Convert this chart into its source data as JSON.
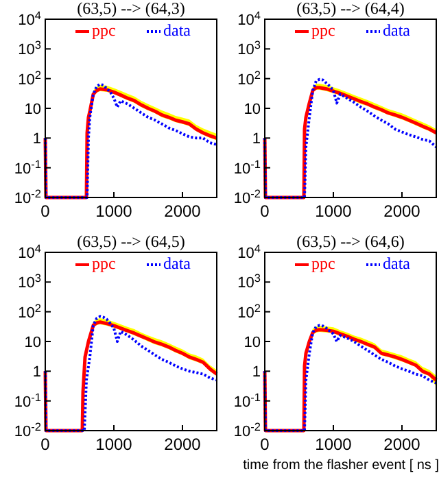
{
  "chart_data": [
    {
      "type": "line",
      "title": "(63,5) --> (64,3)",
      "log": "y",
      "grid": false,
      "legend": "top",
      "xlim": [
        0,
        2500
      ],
      "xticks": [
        0,
        1000,
        2000
      ],
      "ylim": [
        0.01,
        10000
      ],
      "yticks": [
        {
          "value": 0.01,
          "label": "10$^{-2}$"
        },
        {
          "value": 0.1,
          "label": "10$^{-1}$"
        },
        {
          "value": 1,
          "label": "1"
        },
        {
          "value": 10,
          "label": "10"
        },
        {
          "value": 100,
          "label": "10$^{2}$"
        },
        {
          "value": 1000,
          "label": "10$^{3}$"
        },
        {
          "value": 10000,
          "label": "10$^{4}$"
        }
      ],
      "series": [
        {
          "name": "ppc",
          "color": "#ff0000",
          "line_style": "solid",
          "x": [
            0,
            10,
            600,
            610,
            630,
            650,
            700,
            750,
            800,
            900,
            1000,
            1100,
            1200,
            1300,
            1400,
            1500,
            1600,
            1700,
            1800,
            1900,
            2000,
            2100,
            2200,
            2300,
            2400,
            2500
          ],
          "values": [
            1,
            0.01,
            0.01,
            1.5,
            5,
            8,
            30,
            40,
            45,
            42,
            35,
            28,
            22,
            18,
            13,
            10,
            8,
            6,
            5,
            4,
            3.5,
            3,
            2,
            1.5,
            1.2,
            1
          ],
          "lower": [
            null,
            null,
            null,
            1.2,
            4,
            7,
            25,
            34,
            38,
            36,
            30,
            24,
            19,
            15,
            11,
            8.5,
            6.8,
            5,
            4.2,
            3.4,
            3,
            2.5,
            1.7,
            1.3,
            1,
            0.85
          ],
          "upper": [
            null,
            null,
            null,
            2,
            6.5,
            11,
            40,
            55,
            62,
            58,
            48,
            39,
            31,
            25,
            18,
            14,
            11,
            8.5,
            7,
            5.6,
            4.9,
            4.2,
            2.8,
            2.1,
            1.7,
            1.4
          ]
        },
        {
          "name": "data",
          "color": "#0000ff",
          "line_style": "dotted",
          "x": [
            0,
            10,
            610,
            630,
            650,
            700,
            750,
            800,
            850,
            900,
            950,
            1000,
            1050,
            1100,
            1200,
            1300,
            1400,
            1500,
            1600,
            1700,
            1800,
            1900,
            2000,
            2100,
            2200,
            2300,
            2400,
            2500
          ],
          "values": [
            1,
            0.01,
            0.01,
            1,
            5,
            30,
            55,
            65,
            60,
            45,
            35,
            22,
            11,
            18,
            14,
            10,
            7,
            5,
            4,
            3,
            2.2,
            1.8,
            1.4,
            1.1,
            1,
            1,
            0.7,
            0.6
          ]
        }
      ]
    },
    {
      "type": "line",
      "title": "(63,5) --> (64,4)",
      "log": "y",
      "grid": false,
      "legend": "top",
      "xlim": [
        0,
        2500
      ],
      "xticks": [
        0,
        1000,
        2000
      ],
      "ylim": [
        0.01,
        10000
      ],
      "yticks": [
        {
          "value": 0.01,
          "label": "10$^{-2}$"
        },
        {
          "value": 0.1,
          "label": "10$^{-1}$"
        },
        {
          "value": 1,
          "label": "1"
        },
        {
          "value": 10,
          "label": "10"
        },
        {
          "value": 100,
          "label": "10$^{2}$"
        },
        {
          "value": 1000,
          "label": "10$^{3}$"
        },
        {
          "value": 10000,
          "label": "10$^{4}$"
        }
      ],
      "series": [
        {
          "name": "ppc",
          "color": "#ff0000",
          "line_style": "solid",
          "x": [
            0,
            10,
            570,
            580,
            600,
            650,
            700,
            750,
            800,
            900,
            1000,
            1100,
            1200,
            1300,
            1400,
            1500,
            1600,
            1700,
            1800,
            1900,
            2000,
            2100,
            2200,
            2300,
            2400,
            2500
          ],
          "values": [
            1,
            0.01,
            0.01,
            2,
            5,
            15,
            40,
            50,
            50,
            45,
            38,
            32,
            26,
            21,
            17,
            14,
            11,
            9,
            7,
            6,
            5,
            4,
            3.2,
            2.5,
            2,
            1.5
          ],
          "lower": [
            null,
            null,
            null,
            1.7,
            4.2,
            13,
            34,
            42,
            42,
            38,
            32,
            27,
            22,
            18,
            14,
            12,
            9.4,
            7.6,
            6,
            5.1,
            4.2,
            3.4,
            2.7,
            2.1,
            1.7,
            1.3
          ],
          "upper": [
            null,
            null,
            null,
            2.7,
            6.8,
            20,
            54,
            68,
            68,
            61,
            51,
            43,
            35,
            28,
            23,
            19,
            15,
            12,
            9.5,
            8.1,
            6.8,
            5.4,
            4.3,
            3.4,
            2.7,
            2
          ]
        },
        {
          "name": "data",
          "color": "#0000ff",
          "line_style": "dotted",
          "x": [
            0,
            10,
            580,
            600,
            650,
            700,
            750,
            800,
            850,
            900,
            950,
            1000,
            1050,
            1100,
            1200,
            1300,
            1400,
            1500,
            1600,
            1700,
            1800,
            1900,
            2000,
            2100,
            2200,
            2300,
            2400,
            2500
          ],
          "values": [
            1,
            0.01,
            0.01,
            0.5,
            5,
            40,
            85,
            95,
            90,
            70,
            55,
            40,
            15,
            30,
            22,
            16,
            11,
            8,
            5.5,
            4,
            3,
            2,
            1.6,
            1.3,
            1.1,
            0.9,
            0.8,
            0.5
          ]
        }
      ]
    },
    {
      "type": "line",
      "title": "(63,5) --> (64,5)",
      "log": "y",
      "grid": false,
      "legend": "top",
      "xlim": [
        0,
        2500
      ],
      "xticks": [
        0,
        1000,
        2000
      ],
      "ylim": [
        0.01,
        10000
      ],
      "yticks": [
        {
          "value": 0.01,
          "label": "10$^{-2}$"
        },
        {
          "value": 0.1,
          "label": "10$^{-1}$"
        },
        {
          "value": 1,
          "label": "1"
        },
        {
          "value": 10,
          "label": "10"
        },
        {
          "value": 100,
          "label": "10$^{2}$"
        },
        {
          "value": 1000,
          "label": "10$^{3}$"
        },
        {
          "value": 10000,
          "label": "10$^{4}$"
        }
      ],
      "series": [
        {
          "name": "ppc",
          "color": "#ff0000",
          "line_style": "solid",
          "x": [
            0,
            10,
            540,
            550,
            580,
            630,
            700,
            750,
            800,
            900,
            1000,
            1100,
            1200,
            1300,
            1400,
            1500,
            1600,
            1700,
            1800,
            1900,
            2000,
            2100,
            2200,
            2300,
            2400,
            2500
          ],
          "values": [
            1,
            0.01,
            0.01,
            0.2,
            3,
            10,
            35,
            42,
            45,
            40,
            34,
            28,
            23,
            19,
            15,
            12,
            9.5,
            8,
            6.5,
            5,
            4,
            3,
            2.5,
            2,
            1.2,
            0.8
          ],
          "lower": [
            null,
            null,
            null,
            0.17,
            2.5,
            8.5,
            30,
            36,
            38,
            34,
            29,
            24,
            20,
            16,
            13,
            10,
            8,
            6.8,
            5.5,
            4.2,
            3.4,
            2.5,
            2.1,
            1.7,
            1,
            0.68
          ],
          "upper": [
            null,
            null,
            null,
            0.27,
            4,
            13.5,
            47,
            57,
            61,
            54,
            46,
            38,
            31,
            26,
            20,
            16,
            13,
            11,
            8.8,
            6.8,
            5.4,
            4,
            3.4,
            2.7,
            1.6,
            1.1
          ]
        },
        {
          "name": "data",
          "color": "#0000ff",
          "line_style": "dotted",
          "x": [
            0,
            10,
            570,
            600,
            650,
            700,
            750,
            800,
            850,
            900,
            950,
            1000,
            1050,
            1100,
            1200,
            1300,
            1400,
            1500,
            1600,
            1700,
            1800,
            1900,
            2000,
            2100,
            2200,
            2300,
            2400,
            2500
          ],
          "values": [
            1,
            0.01,
            0.01,
            0.5,
            3,
            35,
            60,
            70,
            65,
            55,
            40,
            28,
            10,
            22,
            16,
            11,
            7,
            5,
            3.5,
            2.5,
            2,
            1.5,
            1.2,
            1,
            0.9,
            0.8,
            0.6,
            0.5
          ]
        }
      ]
    },
    {
      "type": "line",
      "title": "(63,5) --> (64,6)",
      "xlabel": "time from the flasher event [ ns ]",
      "log": "y",
      "grid": false,
      "legend": "top",
      "xlim": [
        0,
        2500
      ],
      "xticks": [
        0,
        1000,
        2000
      ],
      "ylim": [
        0.01,
        10000
      ],
      "yticks": [
        {
          "value": 0.01,
          "label": "10$^{-2}$"
        },
        {
          "value": 0.1,
          "label": "10$^{-1}$"
        },
        {
          "value": 1,
          "label": "1"
        },
        {
          "value": 10,
          "label": "10"
        },
        {
          "value": 100,
          "label": "10$^{2}$"
        },
        {
          "value": 1000,
          "label": "10$^{3}$"
        },
        {
          "value": 10000,
          "label": "10$^{4}$"
        }
      ],
      "series": [
        {
          "name": "ppc",
          "color": "#ff0000",
          "line_style": "solid",
          "x": [
            0,
            10,
            570,
            580,
            600,
            650,
            700,
            750,
            800,
            900,
            1000,
            1100,
            1200,
            1300,
            1400,
            1500,
            1600,
            1700,
            1800,
            1900,
            2000,
            2100,
            2200,
            2300,
            2400,
            2500
          ],
          "values": [
            1,
            0.01,
            0.01,
            1.5,
            4,
            10,
            20,
            24,
            25,
            24,
            22,
            18,
            15,
            12,
            10,
            8,
            6.5,
            4,
            3.5,
            3,
            2.5,
            2,
            1.6,
            1,
            0.8,
            0.5
          ],
          "lower": [
            null,
            null,
            null,
            1.3,
            3.4,
            8.5,
            17,
            20,
            21,
            20,
            19,
            15,
            13,
            10,
            8.5,
            6.8,
            5.5,
            3.4,
            3,
            2.5,
            2.1,
            1.7,
            1.4,
            0.85,
            0.68,
            0.3
          ],
          "upper": [
            null,
            null,
            null,
            2,
            5.4,
            13.5,
            27,
            32,
            34,
            32,
            30,
            24,
            20,
            16,
            13.5,
            11,
            8.8,
            5.4,
            4.7,
            4,
            3.4,
            2.7,
            2.2,
            1.4,
            1.1,
            0.7
          ]
        },
        {
          "name": "data",
          "color": "#0000ff",
          "line_style": "dotted",
          "x": [
            0,
            10,
            580,
            600,
            650,
            700,
            750,
            800,
            850,
            900,
            950,
            1000,
            1050,
            1100,
            1200,
            1300,
            1400,
            1500,
            1600,
            1700,
            1800,
            1900,
            2000,
            2100,
            2200,
            2300,
            2400,
            2500
          ],
          "values": [
            1,
            0.01,
            0.01,
            0.5,
            4,
            20,
            32,
            35,
            33,
            28,
            22,
            18,
            10,
            16,
            13,
            10,
            7,
            5,
            3.5,
            2.5,
            2,
            1.5,
            1.2,
            1,
            0.8,
            0.7,
            0.5,
            0.4
          ]
        }
      ]
    }
  ]
}
